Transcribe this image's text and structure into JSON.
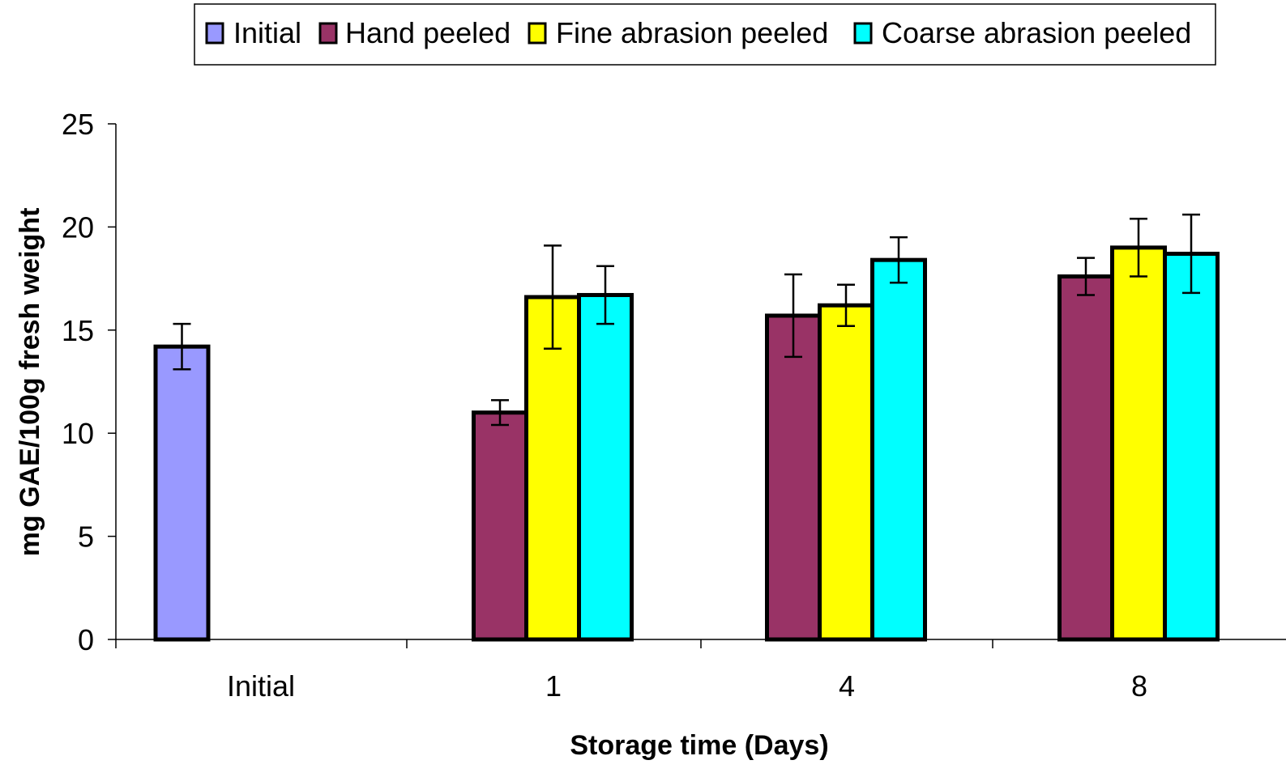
{
  "chart_data": {
    "type": "bar",
    "title": "",
    "xlabel": "Storage time (Days)",
    "ylabel": "mg GAE/100g fresh weight",
    "ylim": [
      0,
      25
    ],
    "yticks": [
      "0",
      "5",
      "10",
      "15",
      "20",
      "25"
    ],
    "categories": [
      "Initial",
      "1",
      "4",
      "8"
    ],
    "grid": false,
    "legend_position": "top",
    "series": [
      {
        "name": "Initial",
        "color": "#9999ff",
        "values": [
          14.2,
          null,
          null,
          null
        ],
        "errors": [
          1.1,
          null,
          null,
          null
        ]
      },
      {
        "name": "Hand peeled",
        "color": "#993366",
        "values": [
          null,
          11.0,
          15.7,
          17.6
        ],
        "errors": [
          null,
          0.6,
          2.0,
          0.9
        ]
      },
      {
        "name": "Fine abrasion peeled",
        "color": "#ffff00",
        "values": [
          null,
          16.6,
          16.2,
          19.0
        ],
        "errors": [
          null,
          2.5,
          1.0,
          1.4
        ]
      },
      {
        "name": "Coarse abrasion peeled",
        "color": "#00ffff",
        "values": [
          null,
          16.7,
          18.4,
          18.7
        ],
        "errors": [
          null,
          1.4,
          1.1,
          1.9
        ]
      }
    ]
  }
}
